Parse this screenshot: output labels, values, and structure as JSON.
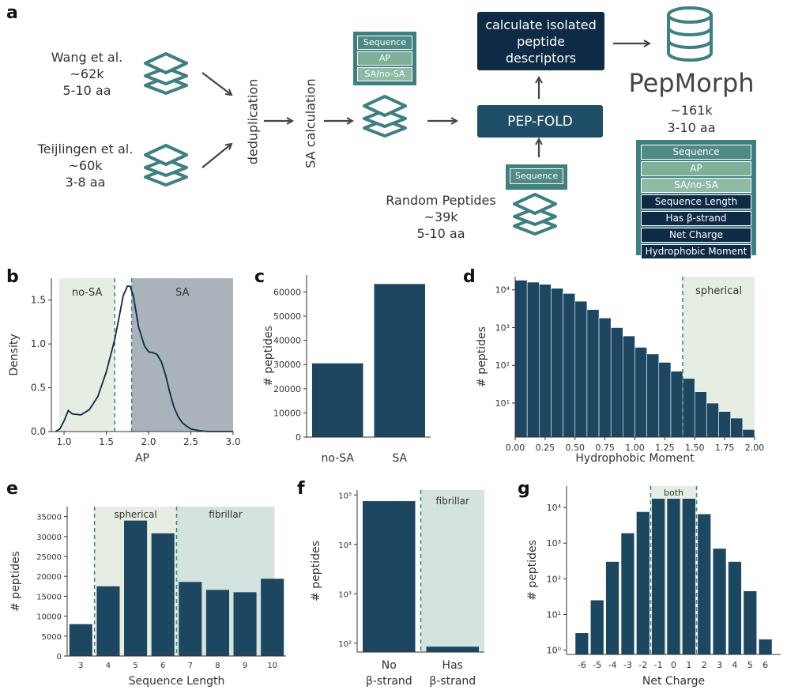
{
  "panel_letters": [
    "a",
    "b",
    "c",
    "d",
    "e",
    "f",
    "g"
  ],
  "flow": {
    "source1": [
      "Wang et al.",
      "~62k",
      "5-10 aa"
    ],
    "source2": [
      "Teijlingen et al.",
      "~60k",
      "3-8 aa"
    ],
    "dedup_label": "deduplication",
    "sa_label": "SA calculation",
    "card_small": [
      "Sequence",
      "AP",
      "SA/no-SA"
    ],
    "calc_box": [
      "calculate isolated",
      "peptide",
      "descriptors"
    ],
    "pepfold_label": "PEP-FOLD",
    "seq_only_card": [
      "Sequence"
    ],
    "random_source": [
      "Random Peptides",
      "~39k",
      "5-10 aa"
    ],
    "db_title": "PepMorph",
    "db_count": "~161k",
    "db_range": "3-10 aa",
    "card_big": [
      "Sequence",
      "AP",
      "SA/no-SA",
      "Sequence Length",
      "Has β-strand",
      "Net Charge",
      "Hydrophobic Moment"
    ]
  },
  "colors": {
    "dark": "#0f2a44",
    "bar": "#1d4660",
    "teal": "#3f7f82",
    "green_shade": "#e6ede2",
    "gray_shade": "#aab3bb",
    "fib_shade": "#d4e3df"
  },
  "chart_data": [
    {
      "type": "line",
      "id": "b",
      "xlabel": "AP",
      "ylabel": "Density",
      "xlim": [
        0.85,
        3.0
      ],
      "ylim": [
        0,
        1.75
      ],
      "xticks": [
        "1.0",
        "1.5",
        "2.0",
        "2.5",
        "3.0"
      ],
      "yticks": [
        "0.0",
        "0.5",
        "1.0",
        "1.5"
      ],
      "regions": [
        {
          "label": "no-SA",
          "from": 0.85,
          "to": 1.6
        },
        {
          "label": "SA",
          "from": 1.8,
          "to": 3.0
        }
      ],
      "dashed_lines": [
        1.6,
        1.8
      ],
      "x": [
        0.9,
        0.95,
        1.0,
        1.05,
        1.1,
        1.2,
        1.3,
        1.4,
        1.5,
        1.6,
        1.65,
        1.7,
        1.75,
        1.78,
        1.82,
        1.88,
        1.95,
        2.0,
        2.05,
        2.1,
        2.15,
        2.2,
        2.25,
        2.3,
        2.35,
        2.4,
        2.45,
        2.5,
        2.6,
        2.7,
        2.8,
        2.9,
        3.0
      ],
      "y": [
        0.0,
        0.03,
        0.12,
        0.24,
        0.2,
        0.19,
        0.25,
        0.4,
        0.68,
        1.05,
        1.3,
        1.55,
        1.66,
        1.66,
        1.55,
        1.2,
        0.98,
        0.91,
        0.9,
        0.88,
        0.8,
        0.65,
        0.45,
        0.28,
        0.17,
        0.1,
        0.06,
        0.03,
        0.01,
        0.0,
        0.0,
        0.0,
        0.0
      ]
    },
    {
      "type": "bar",
      "id": "c",
      "categories": [
        "no-SA",
        "SA"
      ],
      "values": [
        30500,
        63300
      ],
      "ylabel": "# peptides",
      "ylim": [
        0,
        67000
      ],
      "yticks": [
        "0",
        "10000",
        "20000",
        "30000",
        "40000",
        "50000",
        "60000"
      ]
    },
    {
      "type": "bar",
      "id": "d",
      "xlabel": "Hydrophobic Moment",
      "ylabel": "# peptides",
      "log_scale": true,
      "xlim": [
        0.0,
        2.0
      ],
      "xticks": [
        "0.00",
        "0.25",
        "0.50",
        "0.75",
        "1.00",
        "1.25",
        "1.50",
        "1.75",
        "2.00"
      ],
      "yticks": [
        "10¹",
        "10²",
        "10³",
        "10⁴"
      ],
      "region": {
        "label": "spherical",
        "from": 1.4,
        "to": 2.0
      },
      "dashed_line": 1.4,
      "bin_width": 0.1,
      "bin_starts": [
        0.0,
        0.1,
        0.2,
        0.3,
        0.4,
        0.5,
        0.6,
        0.7,
        0.8,
        0.9,
        1.0,
        1.1,
        1.2,
        1.3,
        1.4,
        1.5,
        1.6,
        1.7,
        1.8,
        1.9
      ],
      "values": [
        18000,
        16000,
        14000,
        11000,
        8000,
        5000,
        3000,
        1800,
        1000,
        600,
        300,
        200,
        120,
        70,
        45,
        20,
        10,
        6,
        4,
        2
      ]
    },
    {
      "type": "bar",
      "id": "e",
      "categories": [
        "3",
        "4",
        "5",
        "6",
        "7",
        "8",
        "9",
        "10"
      ],
      "values": [
        8000,
        17500,
        34000,
        30800,
        18600,
        16600,
        16000,
        19400
      ],
      "xlabel": "Sequence Length",
      "ylabel": "# peptides",
      "ylim": [
        0,
        37500
      ],
      "yticks": [
        "0",
        "5000",
        "10000",
        "15000",
        "20000",
        "25000",
        "30000",
        "35000"
      ],
      "regions": [
        {
          "label": "spherical",
          "from": 3.5,
          "to": 6.5
        },
        {
          "label": "fibrillar",
          "from": 6.5,
          "to": 10.5
        }
      ],
      "dashed_lines": [
        3.5,
        6.5
      ]
    },
    {
      "type": "bar",
      "id": "f",
      "categories": [
        [
          "No",
          "β-strand"
        ],
        [
          "Has",
          "β-strand"
        ]
      ],
      "values": [
        75000,
        85
      ],
      "ylabel": "# peptides",
      "log_scale": true,
      "yticks": [
        "10²",
        "10³",
        "10⁴",
        "10⁵"
      ],
      "region": {
        "label": "fibrillar"
      }
    },
    {
      "type": "bar",
      "id": "g",
      "categories": [
        "-6",
        "-5",
        "-4",
        "-3",
        "-2",
        "-1",
        "0",
        "1",
        "2",
        "3",
        "4",
        "5",
        "6"
      ],
      "values": [
        3,
        25,
        300,
        1900,
        7500,
        18000,
        30000,
        18000,
        6500,
        700,
        300,
        45,
        2
      ],
      "xlabel": "Net Charge",
      "ylabel": "# peptides",
      "log_scale": true,
      "yticks": [
        "10⁰",
        "10¹",
        "10²",
        "10³",
        "10⁴"
      ],
      "region": {
        "label": "both",
        "from": -1.5,
        "to": 1.5
      },
      "dashed_lines": [
        -1.5,
        1.5
      ]
    }
  ]
}
